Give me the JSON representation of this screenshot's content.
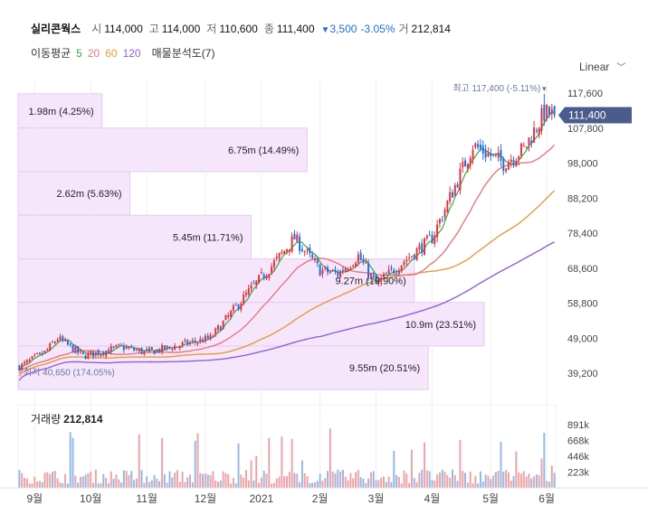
{
  "header": {
    "name": "실리콘웍스",
    "open_label": "시",
    "open": "114,000",
    "high_label": "고",
    "high": "114,000",
    "low_label": "저",
    "low": "110,600",
    "close_label": "종",
    "close": "111,400",
    "change": "3,500",
    "change_pct": "-3.05%",
    "vol_label": "거",
    "volume": "212,814"
  },
  "indicators": {
    "ma_label": "이동평균",
    "ma5": "5",
    "ma20": "20",
    "ma60": "60",
    "ma120": "120",
    "profile_label": "매물분석도(7)"
  },
  "scale_selector": {
    "label": "Linear"
  },
  "volume_panel": {
    "title": "거래량",
    "value": "212,814"
  },
  "colors": {
    "up": "#e0323c",
    "down": "#1e6fd9",
    "ma5": "#36a84a",
    "ma20": "#e8777f",
    "ma60": "#e69a3d",
    "ma120": "#8f60d8",
    "profile": "#f6e6fb",
    "price_tag": "#4a5b8c"
  },
  "chart_data": {
    "type": "candlestick",
    "price_axis": {
      "ticks": [
        117600,
        107800,
        98000,
        88200,
        78400,
        68600,
        58800,
        49000,
        39200
      ],
      "tick_labels": [
        "117,600",
        "107,800",
        "98,000",
        "88,200",
        "78,400",
        "68,600",
        "58,800",
        "49,000",
        "39,200"
      ]
    },
    "volume_axis": {
      "ticks": [
        891000,
        668000,
        446000,
        223000
      ],
      "tick_labels": [
        "891k",
        "668k",
        "446k",
        "223k"
      ]
    },
    "x_labels": [
      "9월",
      "10월",
      "11월",
      "12월",
      "2021",
      "2월",
      "3월",
      "4월",
      "5월",
      "6월"
    ],
    "x_label_index": [
      6,
      28,
      50,
      73,
      95,
      118,
      140,
      162,
      185,
      207
    ],
    "current_price": {
      "value": 111400,
      "label": "111,400"
    },
    "max_marker": {
      "label": "최고",
      "value": "117,400",
      "pct": "(-5.11%)",
      "price": 117400
    },
    "min_marker": {
      "label": "최저",
      "value": "40,650",
      "pct": "(174.05%)",
      "price": 40650
    },
    "volume_profile": [
      {
        "low": 107800,
        "high": 117400,
        "label": "1.98m (4.25%)",
        "fraction": 0.18
      },
      {
        "low": 95600,
        "high": 107800,
        "label": "6.75m (14.49%)",
        "fraction": 0.62
      },
      {
        "low": 83400,
        "high": 95600,
        "label": "2.62m (5.63%)",
        "fraction": 0.24
      },
      {
        "low": 71200,
        "high": 83400,
        "label": "5.45m (11.71%)",
        "fraction": 0.5
      },
      {
        "low": 59000,
        "high": 71200,
        "label": "9.27m (19.90%)",
        "fraction": 0.85
      },
      {
        "low": 46800,
        "high": 59000,
        "label": "10.9m (23.51%)",
        "fraction": 1.0
      },
      {
        "low": 34600,
        "high": 46800,
        "label": "9.55m (20.51%)",
        "fraction": 0.88
      }
    ],
    "anchors": [
      [
        0,
        41000
      ],
      [
        10,
        45000
      ],
      [
        15,
        49000
      ],
      [
        25,
        44000
      ],
      [
        40,
        46500
      ],
      [
        50,
        45000
      ],
      [
        60,
        46500
      ],
      [
        75,
        49000
      ],
      [
        90,
        62000
      ],
      [
        100,
        70000
      ],
      [
        108,
        77000
      ],
      [
        118,
        68000
      ],
      [
        125,
        67000
      ],
      [
        133,
        72000
      ],
      [
        140,
        64000
      ],
      [
        150,
        70000
      ],
      [
        162,
        77000
      ],
      [
        170,
        90000
      ],
      [
        178,
        103000
      ],
      [
        190,
        98000
      ],
      [
        198,
        102000
      ],
      [
        206,
        112000
      ],
      [
        210,
        111400
      ]
    ]
  }
}
